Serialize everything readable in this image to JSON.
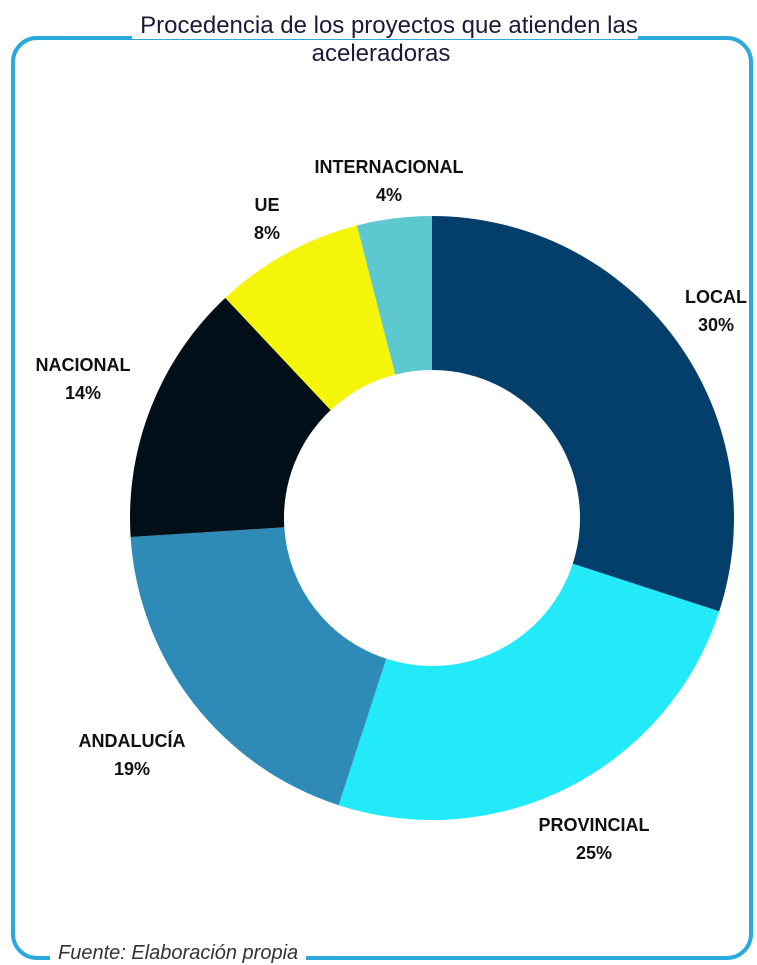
{
  "chart_data": {
    "type": "donut",
    "title": "Procedencia de los proyectos que atienden las aceleradoras",
    "categories": [
      "LOCAL",
      "PROVINCIAL",
      "ANDALUCÍA",
      "NACIONAL",
      "UE",
      "INTERNACIONAL"
    ],
    "values": [
      30,
      25,
      19,
      14,
      8,
      4
    ],
    "value_labels": [
      "30%",
      "25%",
      "19%",
      "14%",
      "8%",
      "4%"
    ],
    "colors": [
      "#043e6b",
      "#22eaf9",
      "#2e8bb8",
      "#020f18",
      "#f5f50a",
      "#5ec8d0"
    ],
    "source": "Fuente: Elaboración propia"
  }
}
